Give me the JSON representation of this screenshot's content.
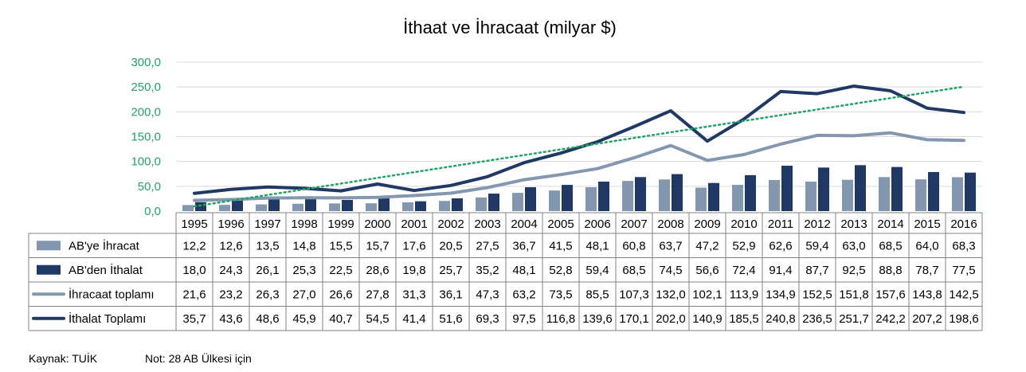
{
  "chart_data": {
    "type": "bar+line",
    "title": "İthaat ve İhracaat (milyar $)",
    "ylim": [
      0,
      300
    ],
    "yticks": [
      "0,0",
      "50,0",
      "100,0",
      "150,0",
      "200,0",
      "250,0",
      "300,0"
    ],
    "categories": [
      "1995",
      "1996",
      "1997",
      "1998",
      "1999",
      "2000",
      "2001",
      "2002",
      "2003",
      "2004",
      "2005",
      "2006",
      "2007",
      "2008",
      "2009",
      "2010",
      "2011",
      "2012",
      "2013",
      "2014",
      "2015",
      "2016"
    ],
    "series": [
      {
        "name": "AB'ye İhracat",
        "kind": "bar",
        "color": "#8497b0",
        "values": [
          12.2,
          12.6,
          13.5,
          14.8,
          15.5,
          15.7,
          17.6,
          20.5,
          27.5,
          36.7,
          41.5,
          48.1,
          60.8,
          63.7,
          47.2,
          52.9,
          62.6,
          59.4,
          63.0,
          68.5,
          64.0,
          68.3
        ],
        "labels": [
          "12,2",
          "12,6",
          "13,5",
          "14,8",
          "15,5",
          "15,7",
          "17,6",
          "20,5",
          "27,5",
          "36,7",
          "41,5",
          "48,1",
          "60,8",
          "63,7",
          "47,2",
          "52,9",
          "62,6",
          "59,4",
          "63,0",
          "68,5",
          "64,0",
          "68,3"
        ]
      },
      {
        "name": "AB'den İthalat",
        "kind": "bar",
        "color": "#203864",
        "values": [
          18.0,
          24.3,
          26.1,
          25.3,
          22.5,
          28.6,
          19.8,
          25.7,
          35.2,
          48.1,
          52.8,
          59.4,
          68.5,
          74.5,
          56.6,
          72.4,
          91.4,
          87.7,
          92.5,
          88.8,
          78.7,
          77.5
        ],
        "labels": [
          "18,0",
          "24,3",
          "26,1",
          "25,3",
          "22,5",
          "28,6",
          "19,8",
          "25,7",
          "35,2",
          "48,1",
          "52,8",
          "59,4",
          "68,5",
          "74,5",
          "56,6",
          "72,4",
          "91,4",
          "87,7",
          "92,5",
          "88,8",
          "78,7",
          "77,5"
        ]
      },
      {
        "name": "İhracaat toplamı",
        "kind": "line",
        "color": "#8497b0",
        "values": [
          21.6,
          23.2,
          26.3,
          27.0,
          26.6,
          27.8,
          31.3,
          36.1,
          47.3,
          63.2,
          73.5,
          85.5,
          107.3,
          132.0,
          102.1,
          113.9,
          134.9,
          152.5,
          151.8,
          157.6,
          143.8,
          142.5
        ],
        "labels": [
          "21,6",
          "23,2",
          "26,3",
          "27,0",
          "26,6",
          "27,8",
          "31,3",
          "36,1",
          "47,3",
          "63,2",
          "73,5",
          "85,5",
          "107,3",
          "132,0",
          "102,1",
          "113,9",
          "134,9",
          "152,5",
          "151,8",
          "157,6",
          "143,8",
          "142,5"
        ]
      },
      {
        "name": "İthalat Toplamı",
        "kind": "line",
        "color": "#203864",
        "values": [
          35.7,
          43.6,
          48.6,
          45.9,
          40.7,
          54.5,
          41.4,
          51.6,
          69.3,
          97.5,
          116.8,
          139.6,
          170.1,
          202.0,
          140.9,
          185.5,
          240.8,
          236.5,
          251.7,
          242.2,
          207.2,
          198.6
        ],
        "labels": [
          "35,7",
          "43,6",
          "48,6",
          "45,9",
          "40,7",
          "54,5",
          "41,4",
          "51,6",
          "69,3",
          "97,5",
          "116,8",
          "139,6",
          "170,1",
          "202,0",
          "140,9",
          "185,5",
          "240,8",
          "236,5",
          "251,7",
          "242,2",
          "207,2",
          "198,6"
        ]
      }
    ],
    "trendline": {
      "series": "İthalat Toplamı",
      "type": "linear",
      "color": "#21a366",
      "style": "dotted"
    },
    "grid": true
  },
  "footer": {
    "source": "Kaynak: TUİK",
    "note": "Not: 28 AB Ülkesi için"
  }
}
